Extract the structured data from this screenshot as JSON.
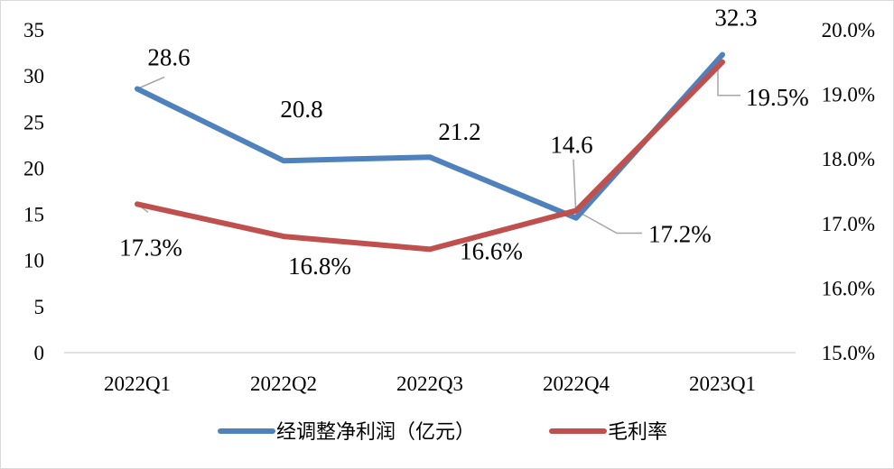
{
  "chart_data": {
    "type": "line",
    "categories": [
      "2022Q1",
      "2022Q2",
      "2022Q3",
      "2022Q4",
      "2023Q1"
    ],
    "series": [
      {
        "name": "经调整净利润（亿元）",
        "axis": "left",
        "color": "#4f81bd",
        "values": [
          28.6,
          20.8,
          21.2,
          14.6,
          32.3
        ],
        "labels": [
          "28.6",
          "20.8",
          "21.2",
          "14.6",
          "32.3"
        ]
      },
      {
        "name": "毛利率",
        "axis": "right",
        "color": "#c0504d",
        "values": [
          17.3,
          16.8,
          16.6,
          17.2,
          19.5
        ],
        "labels": [
          "17.3%",
          "16.8%",
          "16.6%",
          "17.2%",
          "19.5%"
        ]
      }
    ],
    "y_left": {
      "min": 0,
      "max": 35,
      "step": 5,
      "ticks": [
        "0",
        "5",
        "10",
        "15",
        "20",
        "25",
        "30",
        "35"
      ]
    },
    "y_right": {
      "min": 15,
      "max": 20,
      "step": 1,
      "unit": "%",
      "ticks": [
        "15.0%",
        "16.0%",
        "17.0%",
        "18.0%",
        "19.0%",
        "20.0%"
      ]
    },
    "grid": false,
    "legend_position": "bottom",
    "title": ""
  }
}
